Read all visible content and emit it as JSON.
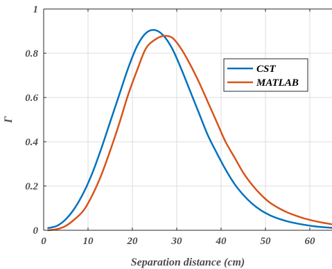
{
  "chart_data": {
    "type": "line",
    "title": "",
    "xlabel": "Separation distance (cm)",
    "ylabel": "Γ",
    "xlim": [
      0,
      65
    ],
    "ylim": [
      0,
      1
    ],
    "xticks": [
      0,
      10,
      20,
      30,
      40,
      50,
      60
    ],
    "yticks": [
      0,
      0.2,
      0.4,
      0.6,
      0.8,
      1
    ],
    "xtick_labels": [
      "0",
      "10",
      "20",
      "30",
      "40",
      "50",
      "60"
    ],
    "ytick_labels": [
      "0",
      "0.2",
      "0.4",
      "0.6",
      "0.8",
      "1"
    ],
    "grid": true,
    "legend_position": "top-right",
    "series": [
      {
        "name": "CST",
        "color": "#0072bd",
        "x": [
          1,
          3,
          5,
          7,
          9,
          11,
          13,
          15,
          17,
          19,
          21,
          23,
          25,
          27,
          29,
          31,
          33,
          35,
          37,
          39,
          41,
          43,
          45,
          47,
          49,
          51,
          53,
          55,
          57,
          59,
          61,
          63,
          65
        ],
        "y": [
          0.01,
          0.02,
          0.05,
          0.1,
          0.17,
          0.26,
          0.37,
          0.49,
          0.61,
          0.73,
          0.83,
          0.89,
          0.905,
          0.88,
          0.82,
          0.73,
          0.63,
          0.53,
          0.43,
          0.35,
          0.275,
          0.21,
          0.16,
          0.12,
          0.09,
          0.068,
          0.052,
          0.04,
          0.031,
          0.024,
          0.018,
          0.014,
          0.011
        ]
      },
      {
        "name": "MATLAB",
        "color": "#d95319",
        "x": [
          1,
          3,
          5,
          7,
          9,
          11,
          13,
          15,
          17,
          19,
          21,
          23,
          25,
          27,
          29,
          31,
          33,
          35,
          37,
          39,
          41,
          43,
          45,
          47,
          49,
          51,
          53,
          55,
          57,
          59,
          61,
          63,
          65
        ],
        "y": [
          0.0,
          0.005,
          0.02,
          0.05,
          0.09,
          0.16,
          0.25,
          0.36,
          0.48,
          0.61,
          0.72,
          0.82,
          0.86,
          0.878,
          0.87,
          0.82,
          0.75,
          0.67,
          0.58,
          0.49,
          0.4,
          0.33,
          0.26,
          0.205,
          0.16,
          0.125,
          0.1,
          0.08,
          0.065,
          0.052,
          0.042,
          0.034,
          0.027
        ]
      }
    ]
  }
}
